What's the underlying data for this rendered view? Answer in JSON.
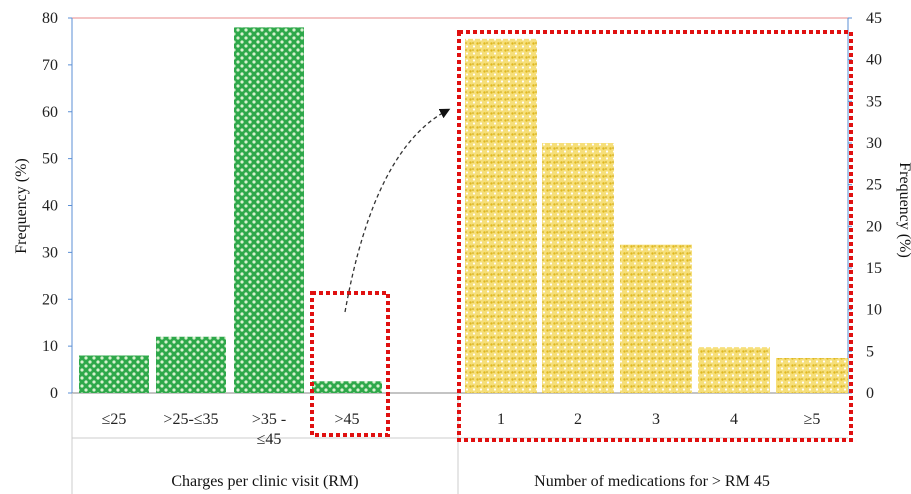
{
  "chart_data": [
    {
      "type": "bar",
      "categories": [
        "≤25",
        ">25-≤35",
        ">35 - ≤45",
        ">45"
      ],
      "values": [
        8,
        12,
        78,
        2.5
      ],
      "xlabel": "Charges per clinic visit (RM)",
      "ylabel": "Frequency (%)",
      "ylim": [
        0,
        80
      ],
      "yticks": [
        "0",
        "10",
        "20",
        "30",
        "40",
        "50",
        "60",
        "70",
        "80"
      ],
      "bar_color": "#2ea84a",
      "highlight_category": ">45",
      "grid": false
    },
    {
      "type": "bar",
      "categories": [
        "1",
        "2",
        "3",
        "4",
        "≥5"
      ],
      "values": [
        42.5,
        30,
        17.8,
        5.5,
        4.2
      ],
      "xlabel": "Number of medications  for > RM 45",
      "ylabel": "Frequency (%)",
      "ylim": [
        0,
        45
      ],
      "yticks": [
        "0",
        "5",
        "10",
        "15",
        "20",
        "25",
        "30",
        "35",
        "40",
        "45"
      ],
      "bar_color": "#f2d14a",
      "grid": false
    }
  ],
  "colors": {
    "highlight_box": "#e01010",
    "top_line": "#e88a8a",
    "axis": "#5b8fd4"
  }
}
